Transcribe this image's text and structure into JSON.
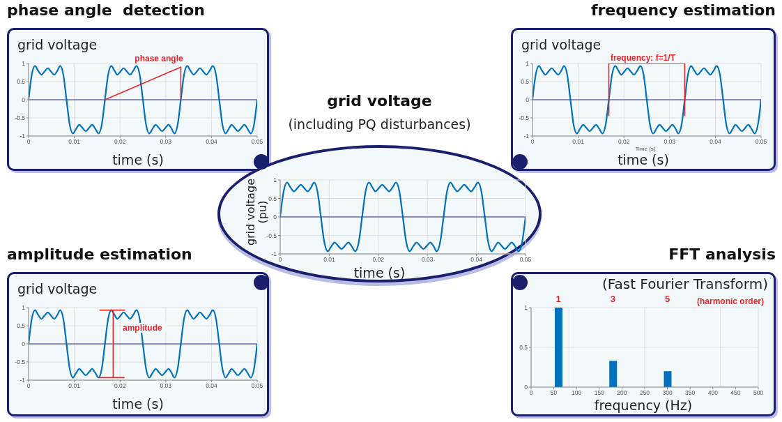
{
  "chart_data": [
    {
      "type": "line",
      "title": "phase angle  detection",
      "ylabel": "grid voltage",
      "xlabel": "time (s)",
      "annotations": [
        "phase angle"
      ],
      "xlim": [
        0,
        0.05
      ],
      "xticks": [
        0,
        0.01,
        0.02,
        0.03,
        0.04,
        0.05
      ],
      "ylim": [
        -1,
        1
      ],
      "yticks": [
        -1,
        -0.5,
        0,
        0.5,
        1
      ],
      "grid": true,
      "ref_lines": [
        {
          "axis": "y",
          "value": 0,
          "color": "#2e3192"
        }
      ],
      "x": [
        0,
        0.0007,
        0.0014,
        0.0021,
        0.0028,
        0.0035,
        0.0042,
        0.0049,
        0.0056,
        0.0063,
        0.0069,
        0.0076,
        0.0083,
        0.009,
        0.0097,
        0.0104,
        0.0111,
        0.0118,
        0.0125,
        0.0132,
        0.0139,
        0.0146,
        0.0153,
        0.016,
        0.0167,
        0.0174,
        0.0181,
        0.0188,
        0.0194,
        0.0201,
        0.0208,
        0.0215,
        0.0222,
        0.0229,
        0.0236,
        0.0243,
        0.025,
        0.0257,
        0.0264,
        0.0271,
        0.0278,
        0.0285,
        0.0292,
        0.0299,
        0.0306,
        0.0313,
        0.0319,
        0.0326,
        0.0333,
        0.034,
        0.0347,
        0.0354,
        0.0361,
        0.0368,
        0.0375,
        0.0382,
        0.0389,
        0.0396,
        0.0403,
        0.041,
        0.0417,
        0.0424,
        0.0431,
        0.0438,
        0.0444,
        0.0451,
        0.0458,
        0.0465,
        0.0472,
        0.0479,
        0.0486,
        0.0493,
        0.05
      ],
      "series": [
        {
          "color": "#0072bd",
          "values": [
            0,
            0.69,
            0.93,
            0.8,
            0.69,
            0.78,
            0.87,
            0.78,
            0.69,
            0.8,
            0.93,
            0.69,
            0,
            -0.69,
            -0.93,
            -0.8,
            -0.69,
            -0.78,
            -0.87,
            -0.78,
            -0.69,
            -0.8,
            -0.93,
            -0.69,
            0,
            0.69,
            0.93,
            0.8,
            0.69,
            0.78,
            0.87,
            0.78,
            0.69,
            0.8,
            0.93,
            0.69,
            0,
            -0.69,
            -0.93,
            -0.8,
            -0.69,
            -0.78,
            -0.87,
            -0.78,
            -0.69,
            -0.8,
            -0.93,
            -0.69,
            0,
            0.69,
            0.93,
            0.8,
            0.69,
            0.78,
            0.87,
            0.78,
            0.69,
            0.8,
            0.93,
            0.69,
            0,
            -0.69,
            -0.93,
            -0.8,
            -0.69,
            -0.78,
            -0.87,
            -0.78,
            -0.69,
            -0.8,
            -0.93,
            -0.69,
            0
          ]
        },
        {
          "type": "line",
          "color": "#e8262a",
          "x": [
            0.0167,
            0.0333,
            0.0333
          ],
          "values": [
            0,
            0.9,
            0
          ]
        }
      ]
    },
    {
      "type": "line",
      "title": "frequency estimation",
      "ylabel": "grid voltage",
      "xlabel": "time (s)",
      "annotations": [
        "frequency: f=1/T",
        "Time (s)"
      ],
      "xlim": [
        0,
        0.05
      ],
      "xticks": [
        0,
        0.01,
        0.02,
        0.03,
        0.04,
        0.05
      ],
      "ylim": [
        -1,
        1
      ],
      "yticks": [
        -1,
        -0.5,
        0,
        0.5,
        1
      ],
      "grid": true,
      "ref_lines": [
        {
          "axis": "y",
          "value": 0,
          "color": "#2e3192"
        }
      ],
      "x": [
        0,
        0.0007,
        0.0014,
        0.0021,
        0.0028,
        0.0035,
        0.0042,
        0.0049,
        0.0056,
        0.0063,
        0.0069,
        0.0076,
        0.0083,
        0.009,
        0.0097,
        0.0104,
        0.0111,
        0.0118,
        0.0125,
        0.0132,
        0.0139,
        0.0146,
        0.0153,
        0.016,
        0.0167,
        0.0174,
        0.0181,
        0.0188,
        0.0194,
        0.0201,
        0.0208,
        0.0215,
        0.0222,
        0.0229,
        0.0236,
        0.0243,
        0.025,
        0.0257,
        0.0264,
        0.0271,
        0.0278,
        0.0285,
        0.0292,
        0.0299,
        0.0306,
        0.0313,
        0.0319,
        0.0326,
        0.0333,
        0.034,
        0.0347,
        0.0354,
        0.0361,
        0.0368,
        0.0375,
        0.0382,
        0.0389,
        0.0396,
        0.0403,
        0.041,
        0.0417,
        0.0424,
        0.0431,
        0.0438,
        0.0444,
        0.0451,
        0.0458,
        0.0465,
        0.0472,
        0.0479,
        0.0486,
        0.0493,
        0.05
      ],
      "series": [
        {
          "color": "#0072bd",
          "values": [
            0,
            0.69,
            0.93,
            0.8,
            0.69,
            0.78,
            0.87,
            0.78,
            0.69,
            0.8,
            0.93,
            0.69,
            0,
            -0.69,
            -0.93,
            -0.8,
            -0.69,
            -0.78,
            -0.87,
            -0.78,
            -0.69,
            -0.8,
            -0.93,
            -0.69,
            0,
            0.69,
            0.93,
            0.8,
            0.69,
            0.78,
            0.87,
            0.78,
            0.69,
            0.8,
            0.93,
            0.69,
            0,
            -0.69,
            -0.93,
            -0.8,
            -0.69,
            -0.78,
            -0.87,
            -0.78,
            -0.69,
            -0.8,
            -0.93,
            -0.69,
            0,
            0.69,
            0.93,
            0.8,
            0.69,
            0.78,
            0.87,
            0.78,
            0.69,
            0.8,
            0.93,
            0.69,
            0,
            -0.69,
            -0.93,
            -0.8,
            -0.69,
            -0.78,
            -0.87,
            -0.78,
            -0.69,
            -0.8,
            -0.93,
            -0.69,
            0
          ]
        },
        {
          "type": "line",
          "color": "#e8262a",
          "x": [
            0.0167,
            0.0167,
            0.0333,
            0.0333
          ],
          "values": [
            -0.45,
            1,
            1,
            -0.45
          ]
        }
      ]
    },
    {
      "type": "line",
      "title": "grid voltage",
      "subtitle": "(including PQ disturbances)",
      "ylabel": "grid voltage (pu)",
      "xlabel": "time (s)",
      "xlim": [
        0,
        0.05
      ],
      "xticks": [
        0,
        0.01,
        0.02,
        0.03,
        0.04,
        0.05
      ],
      "ylim": [
        -1,
        1
      ],
      "yticks": [
        -1,
        -0.5,
        0,
        0.5,
        1
      ],
      "grid": true,
      "ref_lines": [
        {
          "axis": "y",
          "value": 0,
          "color": "#2e3192"
        }
      ],
      "x": [
        0,
        0.0007,
        0.0014,
        0.0021,
        0.0028,
        0.0035,
        0.0042,
        0.0049,
        0.0056,
        0.0063,
        0.0069,
        0.0076,
        0.0083,
        0.009,
        0.0097,
        0.0104,
        0.0111,
        0.0118,
        0.0125,
        0.0132,
        0.0139,
        0.0146,
        0.0153,
        0.016,
        0.0167,
        0.0174,
        0.0181,
        0.0188,
        0.0194,
        0.0201,
        0.0208,
        0.0215,
        0.0222,
        0.0229,
        0.0236,
        0.0243,
        0.025,
        0.0257,
        0.0264,
        0.0271,
        0.0278,
        0.0285,
        0.0292,
        0.0299,
        0.0306,
        0.0313,
        0.0319,
        0.0326,
        0.0333,
        0.034,
        0.0347,
        0.0354,
        0.0361,
        0.0368,
        0.0375,
        0.0382,
        0.0389,
        0.0396,
        0.0403,
        0.041,
        0.0417,
        0.0424,
        0.0431,
        0.0438,
        0.0444,
        0.0451,
        0.0458,
        0.0465,
        0.0472,
        0.0479,
        0.0486,
        0.0493,
        0.05
      ],
      "series": [
        {
          "color": "#0072bd",
          "values": [
            0,
            0.69,
            0.93,
            0.8,
            0.69,
            0.78,
            0.87,
            0.78,
            0.69,
            0.8,
            0.93,
            0.69,
            0,
            -0.69,
            -0.93,
            -0.8,
            -0.69,
            -0.78,
            -0.87,
            -0.78,
            -0.69,
            -0.8,
            -0.93,
            -0.69,
            0,
            0.69,
            0.93,
            0.8,
            0.69,
            0.78,
            0.87,
            0.78,
            0.69,
            0.8,
            0.93,
            0.69,
            0,
            -0.69,
            -0.93,
            -0.8,
            -0.69,
            -0.78,
            -0.87,
            -0.78,
            -0.69,
            -0.8,
            -0.93,
            -0.69,
            0,
            0.69,
            0.93,
            0.8,
            0.69,
            0.78,
            0.87,
            0.78,
            0.69,
            0.8,
            0.93,
            0.69,
            0,
            -0.69,
            -0.93,
            -0.8,
            -0.69,
            -0.78,
            -0.87,
            -0.78,
            -0.69,
            -0.8,
            -0.93,
            -0.69,
            0
          ]
        }
      ]
    },
    {
      "type": "line",
      "title": "amplitude estimation",
      "ylabel": "grid voltage",
      "xlabel": "time (s)",
      "annotations": [
        "amplitude"
      ],
      "xlim": [
        0,
        0.05
      ],
      "xticks": [
        0,
        0.01,
        0.02,
        0.03,
        0.04,
        0.05
      ],
      "ylim": [
        -1,
        1
      ],
      "yticks": [
        -1,
        -0.5,
        0,
        0.5,
        1
      ],
      "grid": true,
      "ref_lines": [
        {
          "axis": "y",
          "value": 0,
          "color": "#2e3192"
        }
      ],
      "x": [
        0,
        0.0007,
        0.0014,
        0.0021,
        0.0028,
        0.0035,
        0.0042,
        0.0049,
        0.0056,
        0.0063,
        0.0069,
        0.0076,
        0.0083,
        0.009,
        0.0097,
        0.0104,
        0.0111,
        0.0118,
        0.0125,
        0.0132,
        0.0139,
        0.0146,
        0.0153,
        0.016,
        0.0167,
        0.0174,
        0.0181,
        0.0188,
        0.0194,
        0.0201,
        0.0208,
        0.0215,
        0.0222,
        0.0229,
        0.0236,
        0.0243,
        0.025,
        0.0257,
        0.0264,
        0.0271,
        0.0278,
        0.0285,
        0.0292,
        0.0299,
        0.0306,
        0.0313,
        0.0319,
        0.0326,
        0.0333,
        0.034,
        0.0347,
        0.0354,
        0.0361,
        0.0368,
        0.0375,
        0.0382,
        0.0389,
        0.0396,
        0.0403,
        0.041,
        0.0417,
        0.0424,
        0.0431,
        0.0438,
        0.0444,
        0.0451,
        0.0458,
        0.0465,
        0.0472,
        0.0479,
        0.0486,
        0.0493,
        0.05
      ],
      "series": [
        {
          "color": "#0072bd",
          "values": [
            0,
            0.69,
            0.93,
            0.8,
            0.69,
            0.78,
            0.87,
            0.78,
            0.69,
            0.8,
            0.93,
            0.69,
            0,
            -0.69,
            -0.93,
            -0.8,
            -0.69,
            -0.78,
            -0.87,
            -0.78,
            -0.69,
            -0.8,
            -0.93,
            -0.69,
            0,
            0.69,
            0.93,
            0.8,
            0.69,
            0.78,
            0.87,
            0.78,
            0.69,
            0.8,
            0.93,
            0.69,
            0,
            -0.69,
            -0.93,
            -0.8,
            -0.69,
            -0.78,
            -0.87,
            -0.78,
            -0.69,
            -0.8,
            -0.93,
            -0.69,
            0,
            0.69,
            0.93,
            0.8,
            0.69,
            0.78,
            0.87,
            0.78,
            0.69,
            0.8,
            0.93,
            0.69,
            0,
            -0.69,
            -0.93,
            -0.8,
            -0.69,
            -0.78,
            -0.87,
            -0.78,
            -0.69,
            -0.8,
            -0.93,
            -0.69,
            0
          ]
        },
        {
          "type": "line",
          "color": "#e8262a",
          "x": [
            0.0155,
            0.021,
            0.0185,
            0.0185,
            0.0155,
            0.021
          ],
          "values": [
            0.93,
            0.93,
            0.93,
            -0.93,
            -0.93,
            -0.93
          ]
        }
      ]
    },
    {
      "type": "bar",
      "title": "FFT analysis",
      "subtitle": "(Fast Fourier Transform)",
      "xlabel": "frequency (Hz)",
      "x2label": "(harmonic order)",
      "x": [
        60,
        180,
        300
      ],
      "values": [
        1,
        0.33,
        0.2
      ],
      "color": "#0072bd",
      "xlim": [
        0,
        500
      ],
      "xticks": [
        0,
        50,
        100,
        150,
        200,
        250,
        300,
        350,
        400,
        450,
        500
      ],
      "x2lim": [
        0,
        8.33
      ],
      "x2ticks": [
        1,
        3,
        5
      ],
      "ylim": [
        0,
        1
      ],
      "yticks": [
        0,
        0.5,
        1
      ],
      "grid": true
    }
  ]
}
